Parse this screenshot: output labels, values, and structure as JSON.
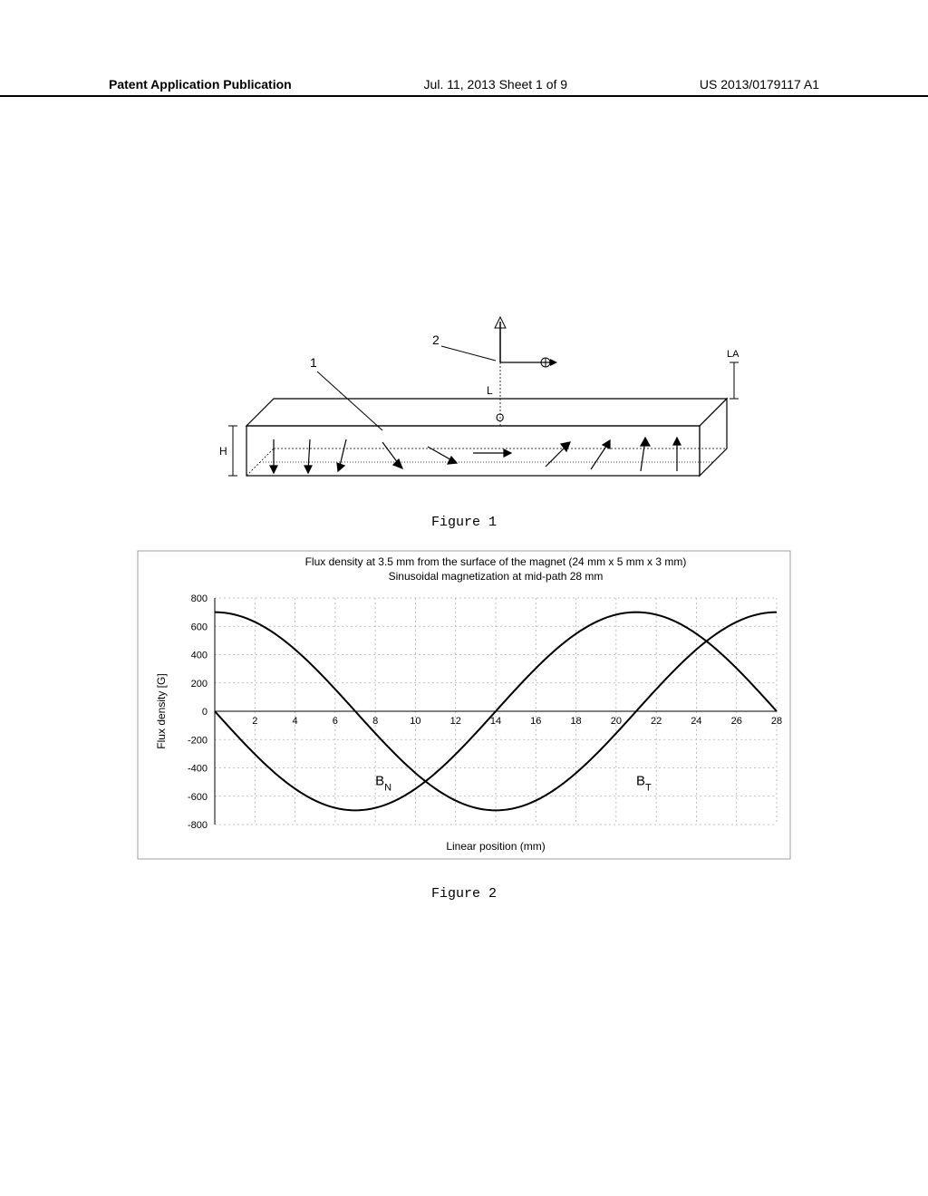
{
  "header": {
    "left": "Patent Application Publication",
    "center": "Jul. 11, 2013  Sheet 1 of 9",
    "right": "US 2013/0179117 A1"
  },
  "figure1": {
    "caption": "Figure 1",
    "labels": {
      "one": "1",
      "two": "2",
      "L": "L",
      "O": "O",
      "H": "H",
      "LA": "LA"
    }
  },
  "figure2": {
    "caption": "Figure 2",
    "type": "line",
    "title_line1": "Flux density at 3.5 mm from the surface of the magnet (24 mm x 5 mm x 3 mm)",
    "title_line2": "Sinusoidal magnetization at mid-path 28 mm",
    "xlabel": "Linear position (mm)",
    "ylabel": "Flux density [G]",
    "xlim": [
      0,
      28
    ],
    "ylim": [
      -800,
      800
    ],
    "xtick_step": 2,
    "ytick_step": 200,
    "xticks": [
      0,
      2,
      4,
      6,
      8,
      10,
      12,
      14,
      16,
      18,
      20,
      22,
      24,
      26,
      28
    ],
    "yticks": [
      -800,
      -600,
      -400,
      -200,
      0,
      200,
      400,
      600,
      800
    ],
    "background_color": "#ffffff",
    "grid_color": "#b0b0b0",
    "grid_dash": "2,3",
    "axis_color": "#000000",
    "series": [
      {
        "name": "BN",
        "color": "#000000",
        "line_width": 2,
        "amplitude": 700,
        "phase_deg": 180,
        "period_mm": 28
      },
      {
        "name": "BT",
        "color": "#000000",
        "line_width": 2,
        "amplitude": 700,
        "phase_deg": 90,
        "period_mm": 28
      }
    ],
    "annotations": {
      "BN": {
        "label": "B",
        "sub": "N",
        "x_mm": 8,
        "y_g": -520
      },
      "BT": {
        "label": "B",
        "sub": "T",
        "x_mm": 21,
        "y_g": -520
      }
    },
    "title_fontsize": 12,
    "label_fontsize": 12,
    "tick_fontsize": 11
  }
}
